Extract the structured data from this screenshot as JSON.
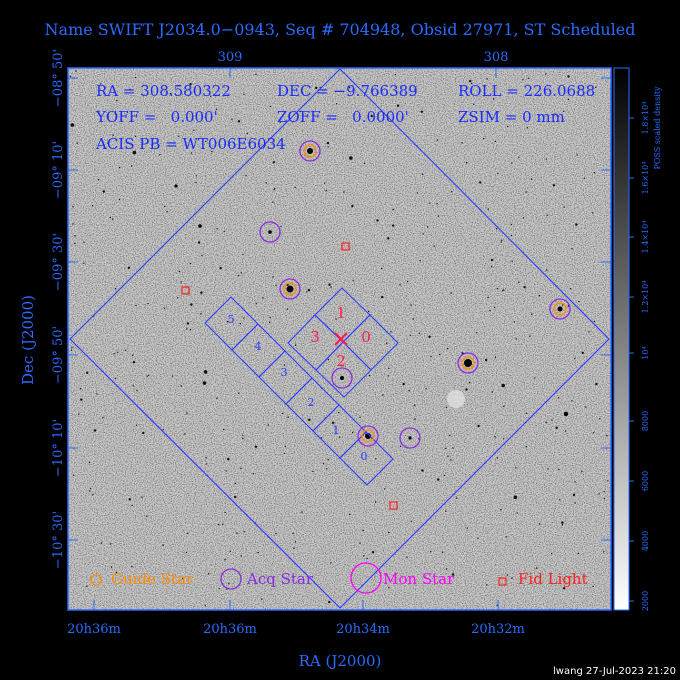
{
  "title": "Name SWIFT J2034.0−0943, Seq # 704948, Obsid 27971, ST Scheduled",
  "info": {
    "ra": "RA = 308.580322",
    "dec": "DEC = −9.766389",
    "roll": "ROLL = 226.0688",
    "yoff": "YOFF =   0.000'",
    "zoff": "ZOFF =   0.0000'",
    "zsim": "ZSIM = 0 mm",
    "acis": "ACIS PB = WT006E6034"
  },
  "axes": {
    "xlabel": "RA (J2000)",
    "ylabel": "Dec (J2000)",
    "top_ticks": [
      "309",
      "308"
    ],
    "bottom_ticks": [
      "20h36m",
      "20h36m",
      "20h34m",
      "20h32m"
    ],
    "left_ticks": [
      "−08° 50'",
      "−09° 10'",
      "−09° 30'",
      "−09° 50'",
      "−10° 10'",
      "−10° 30'"
    ]
  },
  "colorbar": {
    "label": "POSS scaled density",
    "ticks": [
      "2000",
      "4000",
      "6000",
      "8000",
      "10⁴",
      "1.2×10⁴",
      "1.4×10⁴",
      "1.6×10⁴",
      "1.8×10⁴"
    ]
  },
  "chips": {
    "i": [
      "0",
      "1",
      "2",
      "3"
    ],
    "s": [
      "0",
      "1",
      "2",
      "3",
      "4",
      "5"
    ]
  },
  "legend": {
    "guide": "Guide Star",
    "acq": "Acq Star",
    "mon": "Mon Star",
    "fid": "Fid Light"
  },
  "colors": {
    "blue": "#2b3bff",
    "acq": "#8a2be2",
    "guide": "#ff8c00",
    "mon": "#ff00ff",
    "fid": "#ff2020",
    "chip_label": "#ff1a4a"
  },
  "credit": "lwang 27-Jul-2023 21:20"
}
